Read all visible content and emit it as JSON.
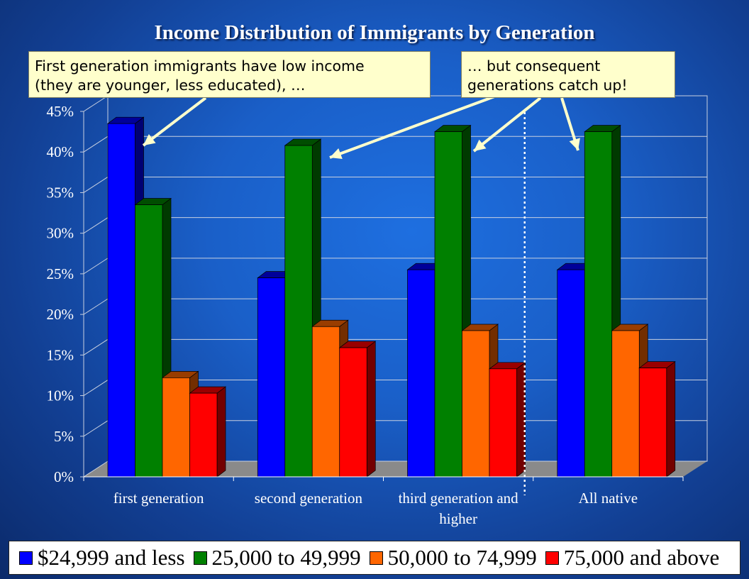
{
  "title": "Income Distribution of Immigrants by Generation",
  "callouts": {
    "left_line1": "First generation immigrants have low income",
    "left_line2": "(they are younger, less educated), …",
    "right_line1": "… but consequent",
    "right_line2": "generations catch up!"
  },
  "chart_data": {
    "type": "bar",
    "categories": [
      "first generation",
      "second generation",
      "third generation and higher",
      "All native"
    ],
    "category_label_lines": [
      [
        "first generation"
      ],
      [
        "second generation"
      ],
      [
        "third generation and",
        "higher"
      ],
      [
        "All native"
      ]
    ],
    "series": [
      {
        "name": "$24,999 and less",
        "values": [
          43.5,
          24.5,
          25.5,
          25.5
        ],
        "color": "#0000ff"
      },
      {
        "name": "25,000 to 49,999",
        "values": [
          33.5,
          40.8,
          42.5,
          42.5
        ],
        "color": "#008000"
      },
      {
        "name": "50,000 to 74,999",
        "values": [
          12.2,
          18.5,
          18.0,
          18.0
        ],
        "color": "#ff6600"
      },
      {
        "name": "75,000 and above",
        "values": [
          10.3,
          15.9,
          13.3,
          13.4
        ],
        "color": "#ff0000"
      }
    ],
    "ylim": [
      0,
      45
    ],
    "yticks": [
      "0%",
      "5%",
      "10%",
      "15%",
      "20%",
      "25%",
      "30%",
      "35%",
      "40%",
      "45%"
    ],
    "xlabel": "",
    "ylabel": "",
    "grid": true,
    "legend_position": "bottom"
  }
}
